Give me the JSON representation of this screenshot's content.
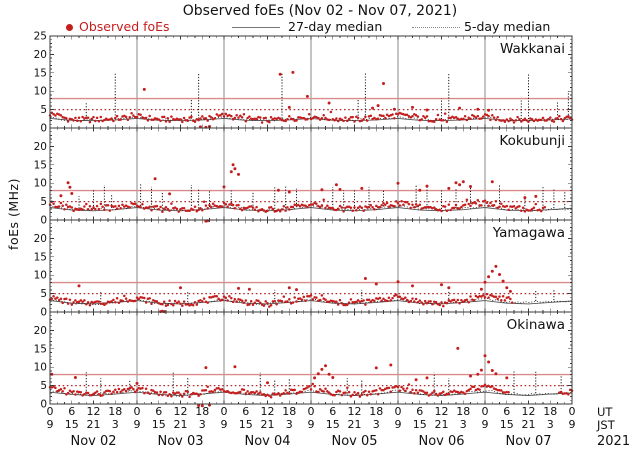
{
  "title": "Observed foEs (Nov 02 - Nov 07, 2021)",
  "legend": {
    "observed": "Observed foEs",
    "median27": "27-day median",
    "median5": "5-day median"
  },
  "yaxis": {
    "label": "foEs (MHz)",
    "range": [
      0,
      25
    ],
    "ticks": [
      0,
      5,
      10,
      15,
      20
    ],
    "top_tick": 25,
    "minor_step": 1
  },
  "axis": {
    "ut_label": "UT",
    "jst_label": "JST",
    "year": "2021",
    "x_range_hours": [
      0,
      144
    ],
    "tick_step_hours": 6,
    "minor_tick_hours": 2,
    "ut_tick_labels": [
      "0",
      "6",
      "12",
      "18",
      "0",
      "6",
      "12",
      "18",
      "0",
      "6",
      "12",
      "18",
      "0",
      "6",
      "12",
      "18",
      "0",
      "6",
      "12",
      "18",
      "0",
      "6",
      "12",
      "18",
      "0"
    ],
    "jst_tick_labels": [
      "9",
      "15",
      "21",
      "3",
      "9",
      "15",
      "21",
      "3",
      "9",
      "15",
      "21",
      "3",
      "9",
      "15",
      "21",
      "3",
      "9",
      "15",
      "21",
      "3",
      "9",
      "15",
      "21",
      "3",
      "9"
    ],
    "day_labels": [
      "Nov 02",
      "Nov 03",
      "Nov 04",
      "Nov 05",
      "Nov 06",
      "Nov 07"
    ]
  },
  "colors": {
    "observed": "#c41e1e",
    "median27_line": "#555555",
    "median5_line": "#141414",
    "threshold_solid": "#d98a8a",
    "threshold_dotted": "#b22a2a",
    "grid": "#8a8a8a",
    "frame": "#3a3a3a",
    "text": "#111111"
  },
  "chart_data": [
    {
      "type": "scatter",
      "name": "Wakkanai",
      "ylim": [
        0,
        25
      ],
      "threshold_solid_mhz": 8,
      "threshold_dotted_mhz": 5,
      "baseline_hours_step": 6,
      "observed_baseline": [
        3.9,
        2.2,
        2.3,
        2.5,
        3.1,
        2.3,
        2.4,
        2.3,
        3.4,
        2.5,
        2.1,
        2.6,
        3.1,
        2.6,
        2.3,
        2.8,
        3.5,
        2.7,
        2.2,
        2.5,
        3.0,
        2.3,
        2.2,
        2.4,
        2.6
      ],
      "median5_baseline": [
        2.8,
        2.1,
        2.2,
        2.3,
        2.9,
        2.2,
        2.3,
        2.2,
        3.0,
        2.3,
        2.1,
        2.4,
        2.9,
        2.4,
        2.2,
        2.5,
        3.0,
        2.4,
        2.1,
        2.4,
        2.8,
        2.2,
        2.1,
        2.3,
        2.5
      ],
      "median27_baseline": [
        2.6,
        2.1,
        2.0,
        2.2,
        2.6,
        2.1,
        2.0,
        2.2,
        2.6,
        2.1,
        2.0,
        2.2,
        2.6,
        2.1,
        2.0,
        2.2,
        2.6,
        2.1,
        2.0,
        2.2,
        2.6,
        2.1,
        2.0,
        2.2,
        2.5
      ],
      "median5_spikes": [
        [
          10,
          7
        ],
        [
          18,
          15
        ],
        [
          39,
          8
        ],
        [
          41,
          15
        ],
        [
          64,
          14.8
        ],
        [
          85,
          8
        ],
        [
          87,
          15
        ],
        [
          108,
          8
        ],
        [
          110,
          15
        ],
        [
          130,
          7.5
        ],
        [
          132,
          15
        ],
        [
          140,
          7
        ],
        [
          143,
          10
        ]
      ],
      "observed_outliers": [
        [
          26,
          10.5
        ],
        [
          41.5,
          0.3
        ],
        [
          43,
          0.2
        ],
        [
          44,
          0.4
        ],
        [
          63.5,
          14.6
        ],
        [
          67,
          15.1
        ],
        [
          66,
          5.6
        ],
        [
          71,
          8.6
        ],
        [
          77,
          6.8
        ],
        [
          89,
          5.4
        ],
        [
          90.5,
          6.1
        ],
        [
          92,
          12.1
        ],
        [
          95,
          5.1
        ],
        [
          100,
          5.6
        ],
        [
          104,
          4.9
        ],
        [
          113,
          5.4
        ],
        [
          118,
          5.1
        ],
        [
          121,
          4.8
        ]
      ],
      "observed_gaps": []
    },
    {
      "type": "scatter",
      "name": "Kokubunji",
      "ylim": [
        0,
        25
      ],
      "threshold_solid_mhz": 8,
      "threshold_dotted_mhz": 5,
      "baseline_hours_step": 6,
      "observed_baseline": [
        4.6,
        3.2,
        3.0,
        3.4,
        4.2,
        3.0,
        2.8,
        3.2,
        4.4,
        3.1,
        2.7,
        3.3,
        4.3,
        3.2,
        2.9,
        3.5,
        4.6,
        3.4,
        3.0,
        3.6,
        4.8,
        3.3,
        2.9,
        3.1,
        3.3
      ],
      "median5_baseline": [
        3.8,
        2.9,
        2.7,
        3.0,
        3.7,
        2.8,
        2.6,
        2.9,
        3.8,
        2.9,
        2.6,
        3.0,
        3.8,
        3.0,
        2.7,
        3.1,
        3.9,
        3.0,
        2.7,
        3.1,
        3.9,
        2.9,
        2.6,
        2.9,
        3.0
      ],
      "median27_baseline": [
        3.4,
        2.7,
        2.5,
        2.8,
        3.4,
        2.7,
        2.5,
        2.8,
        3.4,
        2.7,
        2.5,
        2.8,
        3.4,
        2.7,
        2.5,
        2.8,
        3.4,
        2.7,
        2.5,
        2.8,
        3.4,
        2.7,
        2.5,
        2.8,
        3.2
      ],
      "median5_spikes": [
        [
          8,
          6.5
        ],
        [
          12,
          8.5
        ],
        [
          15,
          9.5
        ],
        [
          17,
          7
        ],
        [
          25,
          10
        ],
        [
          28,
          9
        ],
        [
          31,
          7.5
        ],
        [
          39,
          9.5
        ],
        [
          41,
          8.5
        ],
        [
          44,
          8
        ],
        [
          50,
          8
        ],
        [
          56,
          7.5
        ],
        [
          62,
          9
        ],
        [
          65,
          9.5
        ],
        [
          68,
          8.5
        ],
        [
          78,
          9
        ],
        [
          81,
          8
        ],
        [
          84,
          8.5
        ],
        [
          88,
          9
        ],
        [
          92,
          8
        ],
        [
          101,
          9.5
        ],
        [
          104,
          9
        ],
        [
          108,
          8
        ],
        [
          112,
          8.5
        ],
        [
          116,
          9
        ],
        [
          124,
          9.5
        ],
        [
          131,
          7
        ],
        [
          136,
          9
        ],
        [
          139,
          8.5
        ],
        [
          142,
          8
        ]
      ],
      "observed_outliers": [
        [
          3,
          6.6
        ],
        [
          5,
          10.1
        ],
        [
          5.5,
          8.9
        ],
        [
          6,
          7.2
        ],
        [
          29,
          11.2
        ],
        [
          33,
          7.1
        ],
        [
          43,
          -0.3
        ],
        [
          43.5,
          -0.2
        ],
        [
          48,
          9.0
        ],
        [
          50,
          13.1
        ],
        [
          50.5,
          15.0
        ],
        [
          51,
          13.9
        ],
        [
          52,
          12.4
        ],
        [
          63,
          8.1
        ],
        [
          66,
          7.6
        ],
        [
          75,
          8.2
        ],
        [
          79,
          9.6
        ],
        [
          80,
          8.3
        ],
        [
          86,
          8.6
        ],
        [
          96,
          10.0
        ],
        [
          102,
          8.1
        ],
        [
          104,
          9.2
        ],
        [
          110,
          8.6
        ],
        [
          112,
          10.1
        ],
        [
          113,
          9.6
        ],
        [
          114,
          10.4
        ],
        [
          116,
          9.1
        ],
        [
          122,
          10.4
        ],
        [
          131,
          6.1
        ],
        [
          134,
          6.4
        ]
      ],
      "observed_gaps": [
        [
          137,
          144
        ]
      ]
    },
    {
      "type": "scatter",
      "name": "Yamagawa",
      "ylim": [
        0,
        25
      ],
      "threshold_solid_mhz": 8,
      "threshold_dotted_mhz": 5,
      "baseline_hours_step": 6,
      "observed_baseline": [
        3.9,
        2.6,
        2.3,
        3.0,
        3.8,
        2.5,
        2.2,
        2.9,
        4.0,
        2.7,
        2.1,
        3.0,
        3.9,
        2.6,
        2.3,
        3.1,
        4.1,
        2.8,
        2.2,
        3.0,
        4.6,
        3.4,
        2.8,
        3.0,
        3.2
      ],
      "median5_baseline": [
        3.3,
        2.4,
        2.2,
        2.7,
        3.3,
        2.4,
        2.2,
        2.7,
        3.4,
        2.5,
        2.2,
        2.8,
        3.4,
        2.5,
        2.2,
        2.8,
        3.5,
        2.6,
        2.3,
        2.8,
        3.6,
        2.8,
        2.6,
        2.9,
        3.0
      ],
      "median27_baseline": [
        3.1,
        2.4,
        2.2,
        2.6,
        3.1,
        2.4,
        2.2,
        2.6,
        3.1,
        2.4,
        2.2,
        2.6,
        3.1,
        2.4,
        2.2,
        2.6,
        3.1,
        2.4,
        2.2,
        2.6,
        3.1,
        2.4,
        2.2,
        2.6,
        3.0
      ],
      "median5_spikes": [
        [
          14,
          5.8
        ],
        [
          38,
          5.5
        ],
        [
          62,
          6
        ],
        [
          86,
          6
        ],
        [
          110,
          5.5
        ],
        [
          134,
          6
        ],
        [
          139,
          6.2
        ]
      ],
      "observed_outliers": [
        [
          8,
          7.1
        ],
        [
          30.5,
          0.1
        ],
        [
          31,
          0.2
        ],
        [
          31.5,
          0.1
        ],
        [
          36,
          6.6
        ],
        [
          52,
          6.4
        ],
        [
          55,
          6.2
        ],
        [
          66,
          6.6
        ],
        [
          68,
          6.1
        ],
        [
          87,
          9.1
        ],
        [
          90,
          7.6
        ],
        [
          96,
          8.2
        ],
        [
          100,
          7.1
        ],
        [
          108,
          7.4
        ],
        [
          110,
          6.6
        ],
        [
          119,
          6.2
        ],
        [
          120,
          8.1
        ],
        [
          121,
          9.6
        ],
        [
          122,
          11.1
        ],
        [
          123,
          12.4
        ],
        [
          124,
          10.2
        ],
        [
          125,
          8.4
        ],
        [
          126,
          6.6
        ],
        [
          127,
          5.6
        ]
      ],
      "observed_gaps": [
        [
          128,
          144
        ]
      ]
    },
    {
      "type": "scatter",
      "name": "Okinawa",
      "ylim": [
        0,
        25
      ],
      "threshold_solid_mhz": 8,
      "threshold_dotted_mhz": 5,
      "baseline_hours_step": 6,
      "observed_baseline": [
        4.2,
        3.0,
        2.6,
        3.2,
        4.0,
        2.8,
        2.4,
        3.0,
        4.1,
        2.9,
        2.5,
        3.1,
        4.3,
        3.1,
        2.6,
        3.2,
        4.4,
        3.2,
        2.7,
        3.3,
        4.6,
        3.2,
        2.8,
        3.0,
        3.1
      ],
      "median5_baseline": [
        3.6,
        2.7,
        2.4,
        2.9,
        3.5,
        2.6,
        2.3,
        2.8,
        3.6,
        2.7,
        2.4,
        2.9,
        3.7,
        2.8,
        2.4,
        2.9,
        3.7,
        2.8,
        2.5,
        3.0,
        3.7,
        2.8,
        2.5,
        2.9,
        3.0
      ],
      "median27_baseline": [
        3.2,
        2.6,
        2.3,
        2.7,
        3.2,
        2.6,
        2.3,
        2.7,
        3.2,
        2.6,
        2.3,
        2.7,
        3.2,
        2.6,
        2.3,
        2.7,
        3.2,
        2.6,
        2.3,
        2.7,
        3.2,
        2.6,
        2.3,
        2.7,
        3.0
      ],
      "median5_spikes": [
        [
          10,
          9
        ],
        [
          14,
          7
        ],
        [
          22,
          6.5
        ],
        [
          34,
          9
        ],
        [
          38,
          7.2
        ],
        [
          58,
          8.5
        ],
        [
          62,
          6.8
        ],
        [
          66,
          7
        ],
        [
          82,
          7
        ],
        [
          86,
          6.5
        ],
        [
          106,
          8.5
        ],
        [
          110,
          7
        ],
        [
          128,
          9
        ],
        [
          134,
          9
        ],
        [
          141,
          7.5
        ]
      ],
      "observed_outliers": [
        [
          0.5,
          8.1
        ],
        [
          7,
          7.2
        ],
        [
          24,
          5.6
        ],
        [
          41,
          -0.4
        ],
        [
          42,
          -0.5
        ],
        [
          43,
          9.9
        ],
        [
          44,
          -0.3
        ],
        [
          51,
          10.1
        ],
        [
          60,
          5.8
        ],
        [
          73,
          7.1
        ],
        [
          74,
          8.2
        ],
        [
          75,
          9.4
        ],
        [
          76,
          10.4
        ],
        [
          77,
          8.1
        ],
        [
          78,
          7.2
        ],
        [
          90,
          9.8
        ],
        [
          94,
          10.6
        ],
        [
          101,
          6.6
        ],
        [
          104,
          7.1
        ],
        [
          112.5,
          15.1
        ],
        [
          116,
          7.6
        ],
        [
          118,
          8.1
        ],
        [
          119,
          9.2
        ],
        [
          120,
          13.1
        ],
        [
          121,
          11.4
        ],
        [
          122,
          9.1
        ],
        [
          123,
          8.2
        ],
        [
          126,
          7.1
        ]
      ],
      "observed_gaps": [
        [
          127,
          140
        ]
      ]
    }
  ]
}
